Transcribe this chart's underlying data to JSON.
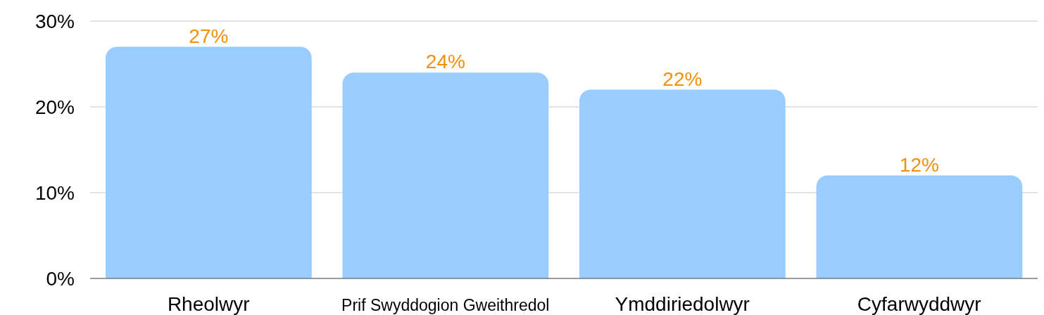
{
  "chart_data": {
    "type": "bar",
    "categories": [
      "Rheolwyr",
      "Prif Swyddogion Gweithredol",
      "Ymddiriedolwyr",
      "Cyfarwyddwyr"
    ],
    "values": [
      27,
      24,
      22,
      12
    ],
    "color": "#99ccff",
    "value_labels": [
      "27%",
      "24%",
      "22%",
      "12%"
    ],
    "ylim": [
      0,
      30
    ],
    "yticks": [
      {
        "value": 0,
        "label": "0%"
      },
      {
        "value": 10,
        "label": "10%"
      },
      {
        "value": 20,
        "label": "20%"
      },
      {
        "value": 30,
        "label": "30%"
      }
    ],
    "grid": "y"
  }
}
